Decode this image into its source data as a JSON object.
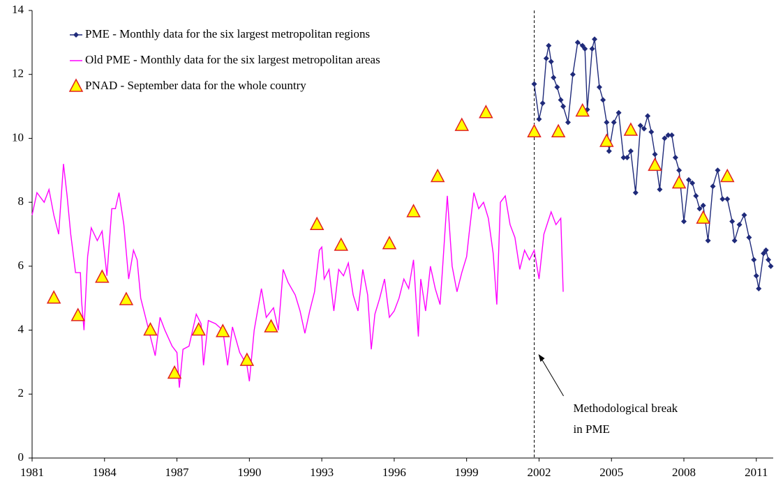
{
  "chart_data": {
    "type": "line",
    "xlim": [
      1981,
      2011.7
    ],
    "xticks": [
      1981,
      1984,
      1987,
      1990,
      1993,
      1996,
      1999,
      2002,
      2005,
      2008,
      2011
    ],
    "ylim": [
      0,
      14
    ],
    "yticks": [
      0,
      2,
      4,
      6,
      8,
      10,
      12,
      14
    ],
    "break_x": 2001.8,
    "annotation": [
      "Methodological break",
      "in PME"
    ],
    "legend": "upper left",
    "series": [
      {
        "name": "PME - Monthly data for the six largest metropolitan regions",
        "color": "#1f2a7a",
        "marker": "diamond",
        "line": true,
        "x": [
          2001.8,
          2002.0,
          2002.15,
          2002.3,
          2002.4,
          2002.5,
          2002.6,
          2002.75,
          2002.9,
          2003.0,
          2003.2,
          2003.4,
          2003.6,
          2003.8,
          2003.9,
          2004.0,
          2004.2,
          2004.3,
          2004.5,
          2004.65,
          2004.8,
          2004.9,
          2005.1,
          2005.3,
          2005.5,
          2005.65,
          2005.8,
          2006.0,
          2006.2,
          2006.35,
          2006.5,
          2006.65,
          2006.8,
          2007.0,
          2007.2,
          2007.35,
          2007.5,
          2007.65,
          2007.8,
          2008.0,
          2008.2,
          2008.35,
          2008.5,
          2008.65,
          2008.8,
          2009.0,
          2009.2,
          2009.4,
          2009.6,
          2009.8,
          2010.0,
          2010.1,
          2010.3,
          2010.5,
          2010.7,
          2010.9,
          2011.0,
          2011.1,
          2011.3,
          2011.4,
          2011.5,
          2011.6
        ],
        "values": [
          11.7,
          10.6,
          11.1,
          12.5,
          12.9,
          12.4,
          11.9,
          11.6,
          11.2,
          11.0,
          10.5,
          12.0,
          13.0,
          12.9,
          12.8,
          10.9,
          12.8,
          13.1,
          11.6,
          11.2,
          10.5,
          9.6,
          10.5,
          10.8,
          9.4,
          9.4,
          9.6,
          8.3,
          10.4,
          10.3,
          10.7,
          10.2,
          9.5,
          8.4,
          10.0,
          10.1,
          10.1,
          9.4,
          9.0,
          7.4,
          8.7,
          8.6,
          8.2,
          7.8,
          7.9,
          6.8,
          8.5,
          9.0,
          8.1,
          8.1,
          7.4,
          6.8,
          7.3,
          7.6,
          6.9,
          6.2,
          5.7,
          5.3,
          6.4,
          6.5,
          6.2,
          6.0
        ]
      },
      {
        "name": "Old PME - Monthly data for the six largest metropolitan areas",
        "color": "#ff00ff",
        "marker": "none",
        "line": true,
        "x": [
          1981.0,
          1981.2,
          1981.5,
          1981.7,
          1981.9,
          1982.1,
          1982.3,
          1982.45,
          1982.6,
          1982.8,
          1983.0,
          1983.05,
          1983.15,
          1983.3,
          1983.45,
          1983.7,
          1983.9,
          1984.1,
          1984.3,
          1984.45,
          1984.6,
          1984.8,
          1985.0,
          1985.2,
          1985.35,
          1985.5,
          1985.8,
          1986.1,
          1986.3,
          1986.5,
          1986.8,
          1987.0,
          1987.1,
          1987.25,
          1987.5,
          1987.8,
          1988.0,
          1988.1,
          1988.3,
          1988.6,
          1988.9,
          1989.1,
          1989.3,
          1989.6,
          1989.9,
          1990.0,
          1990.2,
          1990.5,
          1990.7,
          1991.0,
          1991.2,
          1991.4,
          1991.6,
          1991.9,
          1992.1,
          1992.3,
          1992.5,
          1992.7,
          1992.9,
          1993.0,
          1993.1,
          1993.3,
          1993.5,
          1993.7,
          1993.9,
          1994.1,
          1994.3,
          1994.5,
          1994.7,
          1994.9,
          1995.05,
          1995.2,
          1995.4,
          1995.6,
          1995.8,
          1996.0,
          1996.2,
          1996.4,
          1996.6,
          1996.8,
          1997.0,
          1997.1,
          1997.3,
          1997.5,
          1997.7,
          1997.9,
          1998.0,
          1998.2,
          1998.4,
          1998.6,
          1998.8,
          1999.0,
          1999.1,
          1999.3,
          1999.5,
          1999.7,
          1999.9,
          2000.1,
          2000.25,
          2000.4,
          2000.6,
          2000.8,
          2001.0,
          2001.2,
          2001.4,
          2001.6,
          2001.8,
          2002.0,
          2002.2,
          2002.5,
          2002.7,
          2002.9,
          2003.0
        ],
        "values": [
          7.6,
          8.3,
          8.0,
          8.4,
          7.6,
          7.0,
          9.2,
          8.2,
          7.0,
          5.8,
          5.8,
          4.9,
          4.0,
          6.3,
          7.2,
          6.8,
          7.1,
          5.7,
          7.8,
          7.8,
          8.3,
          7.3,
          5.6,
          6.5,
          6.2,
          5.0,
          4.1,
          3.2,
          4.4,
          4.0,
          3.5,
          3.3,
          2.2,
          3.4,
          3.5,
          4.5,
          4.2,
          2.9,
          4.3,
          4.2,
          4.0,
          2.9,
          4.1,
          3.3,
          2.9,
          2.4,
          4.0,
          5.3,
          4.4,
          4.7,
          4.0,
          5.9,
          5.5,
          5.1,
          4.6,
          3.9,
          4.6,
          5.2,
          6.5,
          6.6,
          5.6,
          5.9,
          4.6,
          5.9,
          5.7,
          6.1,
          5.1,
          4.6,
          5.9,
          5.1,
          3.4,
          4.5,
          5.0,
          5.6,
          4.4,
          4.6,
          5.0,
          5.6,
          5.3,
          6.2,
          3.8,
          5.6,
          4.6,
          6.0,
          5.3,
          4.8,
          5.9,
          8.2,
          6.0,
          5.2,
          5.8,
          6.3,
          7.0,
          8.3,
          7.8,
          8.0,
          7.5,
          6.4,
          4.8,
          8.0,
          8.2,
          7.3,
          6.9,
          5.9,
          6.5,
          6.2,
          6.5,
          5.6,
          7.0,
          7.7,
          7.3,
          7.5,
          5.2
        ]
      },
      {
        "name": "PNAD - September data for the whole country",
        "color": "#ffff00",
        "marker": "triangle",
        "line": false,
        "x": [
          1981.9,
          1982.9,
          1983.9,
          1984.9,
          1985.9,
          1986.9,
          1987.9,
          1988.9,
          1989.9,
          1990.9,
          1992.8,
          1993.8,
          1995.8,
          1996.8,
          1997.8,
          1998.8,
          1999.8,
          2001.8,
          2002.8,
          2003.8,
          2004.8,
          2005.8,
          2006.8,
          2007.8,
          2008.8,
          2009.8
        ],
        "values": [
          5.0,
          4.45,
          5.65,
          4.95,
          4.0,
          2.65,
          4.0,
          3.95,
          3.05,
          4.1,
          7.3,
          6.65,
          6.7,
          7.7,
          8.8,
          10.4,
          10.8,
          10.2,
          10.2,
          10.85,
          9.9,
          10.25,
          9.15,
          8.6,
          7.5,
          8.8
        ]
      }
    ]
  }
}
